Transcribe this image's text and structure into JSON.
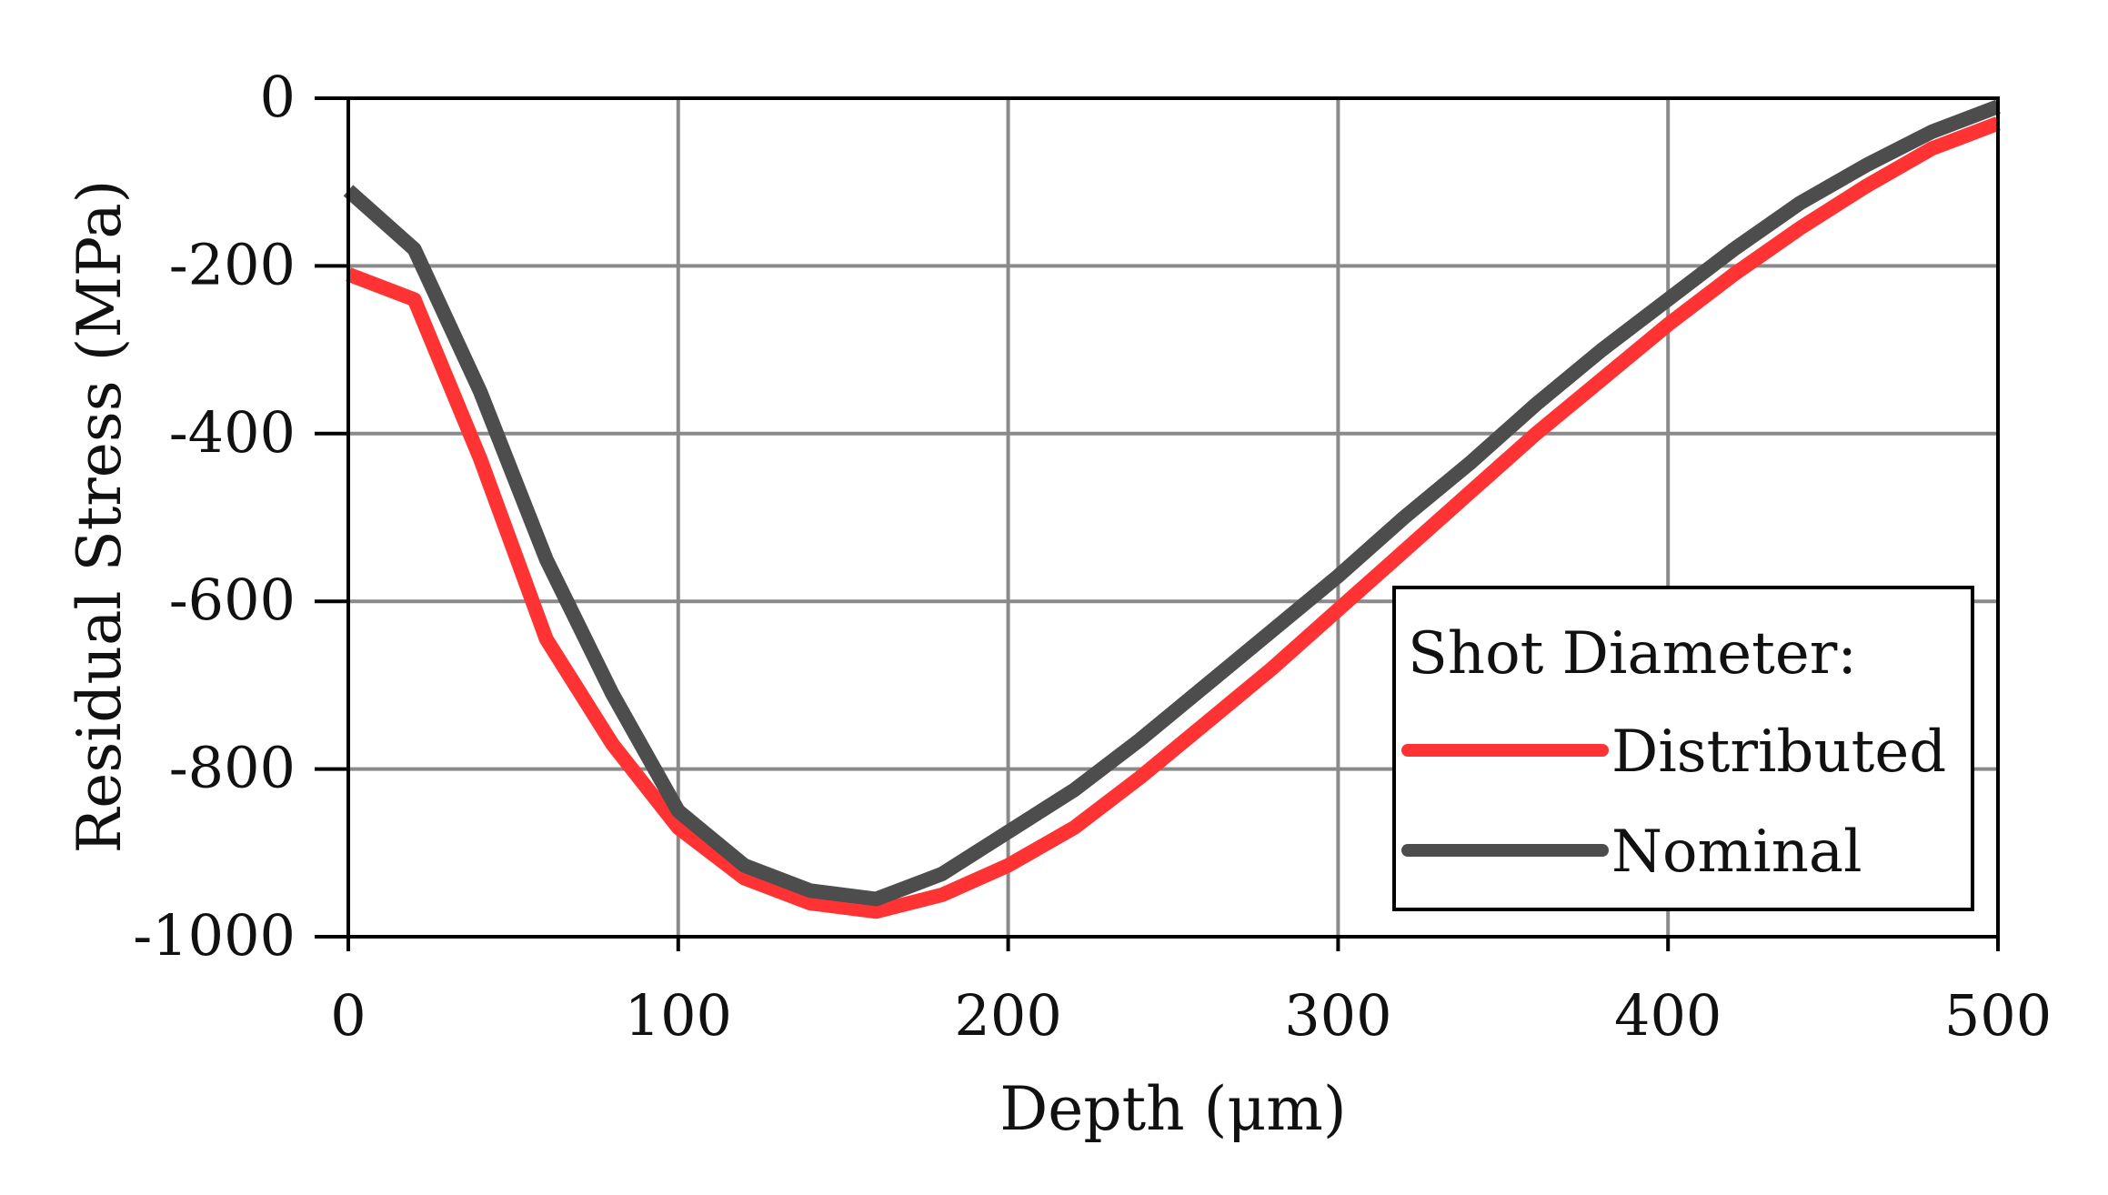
{
  "chart_data": {
    "type": "line",
    "title": "",
    "xlabel": "Depth (μm)",
    "ylabel": "Residual Stress (MPa)",
    "xlim": [
      0,
      500
    ],
    "ylim": [
      -1000,
      0
    ],
    "xticks": [
      0,
      100,
      200,
      300,
      400,
      500
    ],
    "yticks": [
      0,
      -200,
      -400,
      -600,
      -800,
      -1000
    ],
    "grid": true,
    "legend": {
      "title": "Shot Diameter:",
      "placement": "lower-right"
    },
    "series": [
      {
        "name": "Distributed",
        "color": "#ff3333",
        "x": [
          0,
          20,
          40,
          60,
          80,
          100,
          120,
          140,
          160,
          180,
          200,
          220,
          240,
          260,
          280,
          300,
          320,
          340,
          360,
          380,
          400,
          420,
          440,
          460,
          480,
          500
        ],
        "y": [
          -210,
          -240,
          -430,
          -645,
          -770,
          -870,
          -930,
          -960,
          -970,
          -950,
          -915,
          -870,
          -810,
          -745,
          -680,
          -610,
          -540,
          -470,
          -400,
          -335,
          -270,
          -210,
          -155,
          -105,
          -60,
          -30
        ]
      },
      {
        "name": "Nominal",
        "color": "#4d4d4d",
        "x": [
          0,
          20,
          40,
          60,
          80,
          100,
          120,
          140,
          160,
          180,
          200,
          220,
          240,
          260,
          280,
          300,
          320,
          340,
          360,
          380,
          400,
          420,
          440,
          460,
          480,
          500
        ],
        "y": [
          -110,
          -180,
          -350,
          -550,
          -710,
          -850,
          -915,
          -945,
          -955,
          -925,
          -875,
          -825,
          -765,
          -700,
          -635,
          -570,
          -500,
          -435,
          -365,
          -300,
          -240,
          -180,
          -125,
          -80,
          -40,
          -10
        ]
      }
    ]
  }
}
